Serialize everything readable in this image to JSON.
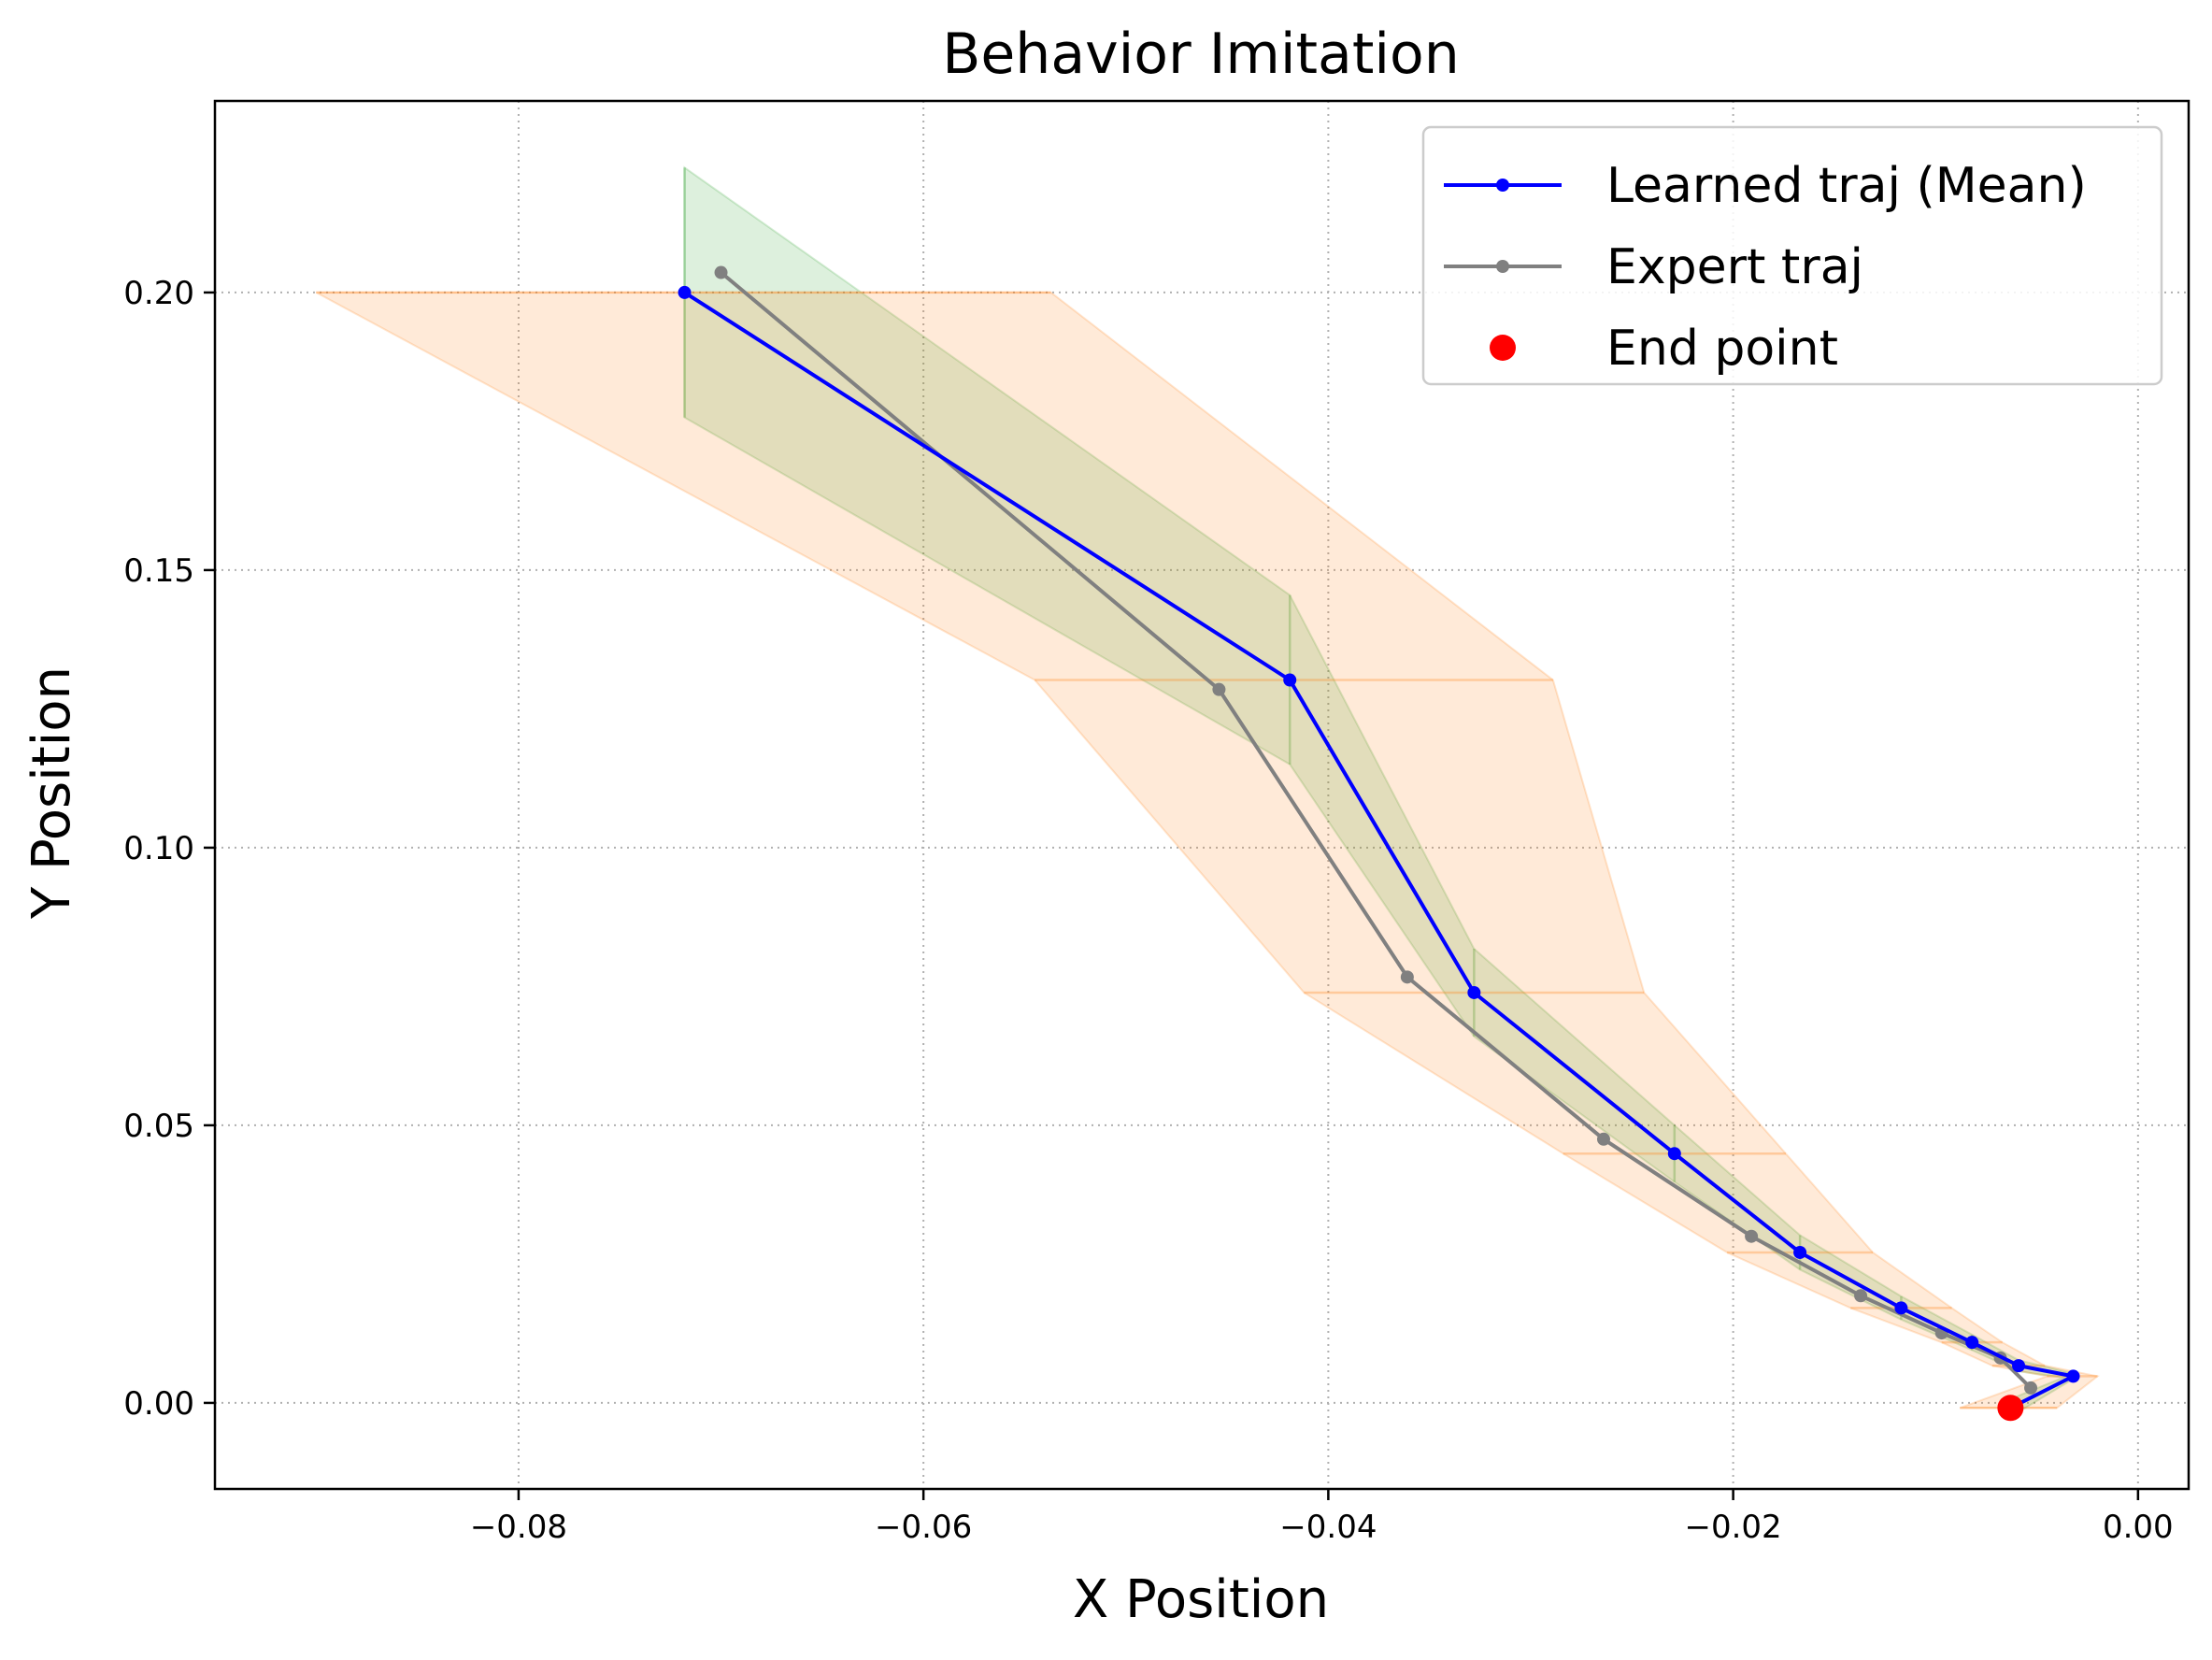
{
  "chart_data": {
    "type": "line",
    "title": "Behavior Imitation",
    "xlabel": "X Position",
    "ylabel": "Y Position",
    "xlim": [
      -0.095,
      0.0025
    ],
    "ylim": [
      -0.0155,
      0.2345
    ],
    "grid": true,
    "grid_style": "dotted",
    "legend_position": "top-right",
    "x_ticks": [
      {
        "value": -0.08,
        "label": "−0.08"
      },
      {
        "value": -0.06,
        "label": "−0.06"
      },
      {
        "value": -0.04,
        "label": "−0.04"
      },
      {
        "value": -0.02,
        "label": "−0.02"
      },
      {
        "value": 0.0,
        "label": "0.00"
      }
    ],
    "y_ticks": [
      {
        "value": 0.0,
        "label": "0.00"
      },
      {
        "value": 0.05,
        "label": "0.05"
      },
      {
        "value": 0.1,
        "label": "0.10"
      },
      {
        "value": 0.15,
        "label": "0.15"
      },
      {
        "value": 0.2,
        "label": "0.20"
      }
    ],
    "series": [
      {
        "name": "Learned traj (Mean)",
        "color": "#0000ff",
        "marker": "dot",
        "points": [
          [
            -0.0718,
            0.2
          ],
          [
            -0.0419,
            0.1302
          ],
          [
            -0.0328,
            0.0739
          ],
          [
            -0.0229,
            0.0449
          ],
          [
            -0.0167,
            0.0271
          ],
          [
            -0.0117,
            0.0171
          ],
          [
            -0.0082,
            0.0109
          ],
          [
            -0.0059,
            0.0067
          ],
          [
            -0.0032,
            0.0048
          ],
          [
            -0.0063,
            -0.0009
          ]
        ]
      },
      {
        "name": "Expert traj",
        "color": "#808080",
        "marker": "dot",
        "points": [
          [
            -0.07,
            0.2036
          ],
          [
            -0.0454,
            0.1285
          ],
          [
            -0.0361,
            0.0767
          ],
          [
            -0.0264,
            0.0475
          ],
          [
            -0.0191,
            0.03
          ],
          [
            -0.0137,
            0.0193
          ],
          [
            -0.0097,
            0.0126
          ],
          [
            -0.0068,
            0.0081
          ],
          [
            -0.0053,
            0.0027
          ]
        ]
      },
      {
        "name": "End point",
        "color": "#ff0000",
        "marker": "large-dot",
        "points": [
          [
            -0.0063,
            -0.0009
          ]
        ]
      }
    ],
    "bands": [
      {
        "color": "#2ca02c",
        "opacity": 0.16,
        "direction": "vertical",
        "lower": [
          [
            -0.0718,
            0.1775
          ],
          [
            -0.0419,
            0.115
          ],
          [
            -0.0328,
            0.066
          ],
          [
            -0.0229,
            0.0398
          ],
          [
            -0.0167,
            0.024
          ],
          [
            -0.0117,
            0.015
          ],
          [
            -0.0082,
            0.0095
          ],
          [
            -0.0059,
            0.0057
          ],
          [
            -0.0032,
            0.0043
          ],
          [
            -0.0063,
            -0.0025
          ]
        ],
        "upper": [
          [
            -0.0718,
            0.2225
          ],
          [
            -0.0419,
            0.1455
          ],
          [
            -0.0328,
            0.0818
          ],
          [
            -0.0229,
            0.05
          ],
          [
            -0.0167,
            0.0302
          ],
          [
            -0.0117,
            0.0192
          ],
          [
            -0.0082,
            0.0123
          ],
          [
            -0.0059,
            0.0077
          ],
          [
            -0.0032,
            0.0053
          ],
          [
            -0.0063,
            0.0007
          ]
        ]
      },
      {
        "color": "#ff7f0e",
        "opacity": 0.16,
        "direction": "horizontal",
        "left": [
          [
            -0.09,
            0.2
          ],
          [
            -0.0545,
            0.1302
          ],
          [
            -0.0412,
            0.0739
          ],
          [
            -0.0284,
            0.0449
          ],
          [
            -0.0203,
            0.0271
          ],
          [
            -0.0142,
            0.0171
          ],
          [
            -0.0097,
            0.0109
          ],
          [
            -0.0072,
            0.0067
          ],
          [
            -0.0045,
            0.0048
          ],
          [
            -0.0088,
            -0.0009
          ]
        ],
        "right": [
          [
            -0.0537,
            0.2
          ],
          [
            -0.0289,
            0.1302
          ],
          [
            -0.0244,
            0.0739
          ],
          [
            -0.0174,
            0.0449
          ],
          [
            -0.0131,
            0.0271
          ],
          [
            -0.0092,
            0.0171
          ],
          [
            -0.0067,
            0.0109
          ],
          [
            -0.0046,
            0.0067
          ],
          [
            -0.002,
            0.0048
          ],
          [
            -0.004,
            -0.0009
          ]
        ]
      }
    ]
  }
}
